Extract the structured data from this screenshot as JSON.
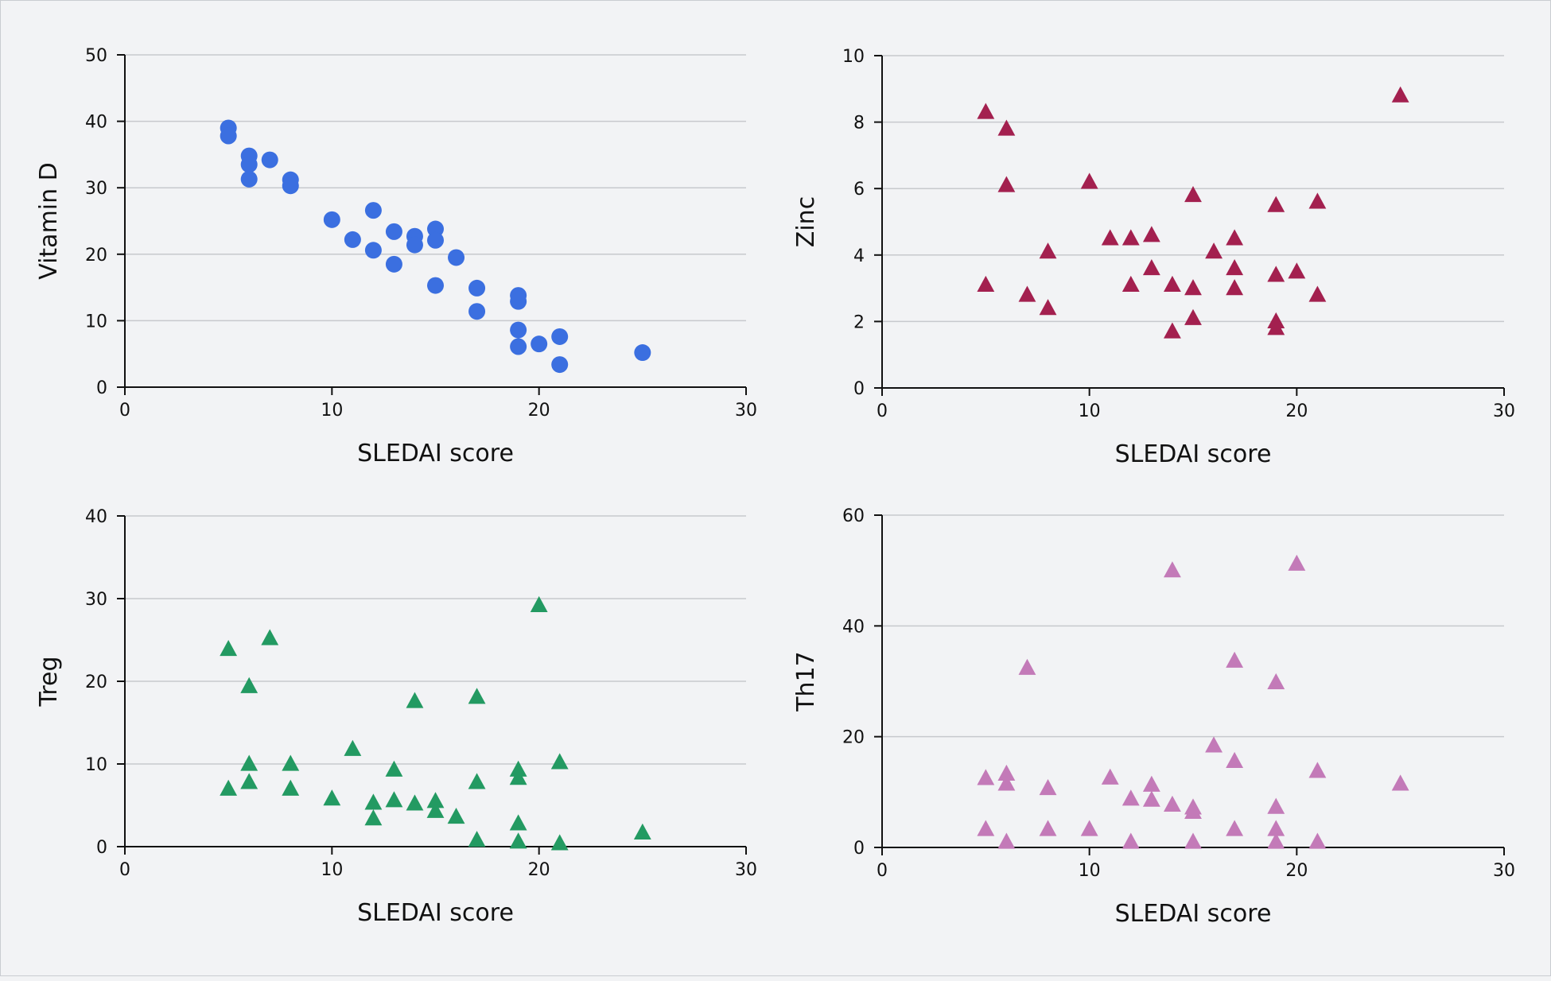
{
  "chart_data": [
    {
      "type": "scatter",
      "title": "",
      "xlabel": "SLEDAI score",
      "ylabel": "Vitamin D",
      "xlim": [
        0,
        30
      ],
      "ylim": [
        0,
        50
      ],
      "xticks": [
        0,
        10,
        20,
        30
      ],
      "yticks": [
        0,
        10,
        20,
        30,
        40,
        50
      ],
      "grid": true,
      "legend": "none",
      "marker": "circle",
      "color": "#3b6fe0",
      "points": [
        [
          5,
          39
        ],
        [
          5,
          37.8
        ],
        [
          6,
          34.8
        ],
        [
          6,
          33.5
        ],
        [
          6,
          31.3
        ],
        [
          7,
          34.2
        ],
        [
          8,
          31.2
        ],
        [
          8,
          30.3
        ],
        [
          10,
          25.2
        ],
        [
          11,
          22.2
        ],
        [
          12,
          26.6
        ],
        [
          12,
          20.6
        ],
        [
          13,
          23.4
        ],
        [
          13,
          18.5
        ],
        [
          14,
          22.7
        ],
        [
          14,
          21.4
        ],
        [
          15,
          23.8
        ],
        [
          15,
          22.1
        ],
        [
          15,
          15.3
        ],
        [
          16,
          19.5
        ],
        [
          17,
          14.9
        ],
        [
          17,
          11.4
        ],
        [
          19,
          13.8
        ],
        [
          19,
          12.9
        ],
        [
          19,
          8.6
        ],
        [
          19,
          6.1
        ],
        [
          20,
          6.5
        ],
        [
          21,
          7.6
        ],
        [
          21,
          3.4
        ],
        [
          25,
          5.2
        ]
      ]
    },
    {
      "type": "scatter",
      "title": "",
      "xlabel": "SLEDAI score",
      "ylabel": "Zinc",
      "xlim": [
        0,
        30
      ],
      "ylim": [
        0,
        10
      ],
      "xticks": [
        0,
        10,
        20,
        30
      ],
      "yticks": [
        0,
        2,
        4,
        6,
        8,
        10
      ],
      "grid": true,
      "legend": "none",
      "marker": "triangle",
      "color": "#a3204f",
      "points": [
        [
          5,
          8.3
        ],
        [
          5,
          3.1
        ],
        [
          6,
          7.8
        ],
        [
          6,
          6.1
        ],
        [
          7,
          2.8
        ],
        [
          8,
          4.1
        ],
        [
          8,
          2.4
        ],
        [
          10,
          6.2
        ],
        [
          11,
          4.5
        ],
        [
          12,
          4.5
        ],
        [
          12,
          3.1
        ],
        [
          13,
          4.6
        ],
        [
          13,
          3.6
        ],
        [
          14,
          3.1
        ],
        [
          14,
          1.7
        ],
        [
          15,
          5.8
        ],
        [
          15,
          3.0
        ],
        [
          15,
          2.1
        ],
        [
          16,
          4.1
        ],
        [
          17,
          4.5
        ],
        [
          17,
          3.6
        ],
        [
          17,
          3.0
        ],
        [
          19,
          5.5
        ],
        [
          19,
          3.4
        ],
        [
          19,
          2.0
        ],
        [
          19,
          1.8
        ],
        [
          20,
          3.5
        ],
        [
          21,
          5.6
        ],
        [
          21,
          2.8
        ],
        [
          25,
          8.8
        ]
      ]
    },
    {
      "type": "scatter",
      "title": "",
      "xlabel": "SLEDAI score",
      "ylabel": "Treg",
      "xlim": [
        0,
        30
      ],
      "ylim": [
        0,
        40
      ],
      "xticks": [
        0,
        10,
        20,
        30
      ],
      "yticks": [
        0,
        10,
        20,
        30,
        40
      ],
      "grid": true,
      "legend": "none",
      "marker": "triangle",
      "color": "#239a62",
      "points": [
        [
          5,
          23.9
        ],
        [
          5,
          7.0
        ],
        [
          6,
          19.4
        ],
        [
          6,
          10.0
        ],
        [
          6,
          7.8
        ],
        [
          7,
          25.2
        ],
        [
          8,
          10.0
        ],
        [
          8,
          7.0
        ],
        [
          10,
          5.8
        ],
        [
          11,
          11.8
        ],
        [
          12,
          5.3
        ],
        [
          12,
          3.4
        ],
        [
          13,
          9.3
        ],
        [
          13,
          5.6
        ],
        [
          14,
          17.6
        ],
        [
          14,
          5.2
        ],
        [
          15,
          5.5
        ],
        [
          15,
          4.3
        ],
        [
          16,
          3.6
        ],
        [
          17,
          18.1
        ],
        [
          17,
          7.8
        ],
        [
          17,
          0.8
        ],
        [
          19,
          9.3
        ],
        [
          19,
          8.3
        ],
        [
          19,
          2.8
        ],
        [
          19,
          0.6
        ],
        [
          20,
          29.2
        ],
        [
          21,
          10.2
        ],
        [
          21,
          0.4
        ],
        [
          25,
          1.7
        ]
      ]
    },
    {
      "type": "scatter",
      "title": "",
      "xlabel": "SLEDAI score",
      "ylabel": "Th17",
      "xlim": [
        0,
        30
      ],
      "ylim": [
        0,
        60
      ],
      "xticks": [
        0,
        10,
        20,
        30
      ],
      "yticks": [
        0,
        20,
        40,
        60
      ],
      "grid": true,
      "legend": "none",
      "marker": "triangle",
      "color": "#c37ab8",
      "points": [
        [
          5,
          12.5
        ],
        [
          5,
          3.3
        ],
        [
          6,
          13.3
        ],
        [
          6,
          11.5
        ],
        [
          6,
          1.0
        ],
        [
          7,
          32.4
        ],
        [
          8,
          10.7
        ],
        [
          8,
          3.3
        ],
        [
          10,
          3.3
        ],
        [
          11,
          12.6
        ],
        [
          12,
          8.8
        ],
        [
          12,
          1.0
        ],
        [
          13,
          11.3
        ],
        [
          13,
          8.6
        ],
        [
          14,
          50.0
        ],
        [
          14,
          7.7
        ],
        [
          15,
          7.2
        ],
        [
          15,
          6.4
        ],
        [
          15,
          1.0
        ],
        [
          16,
          18.4
        ],
        [
          17,
          33.7
        ],
        [
          17,
          15.6
        ],
        [
          17,
          3.3
        ],
        [
          19,
          29.8
        ],
        [
          19,
          7.3
        ],
        [
          19,
          3.3
        ],
        [
          19,
          1.0
        ],
        [
          20,
          51.2
        ],
        [
          21,
          13.8
        ],
        [
          21,
          1.0
        ],
        [
          25,
          11.5
        ]
      ]
    }
  ]
}
